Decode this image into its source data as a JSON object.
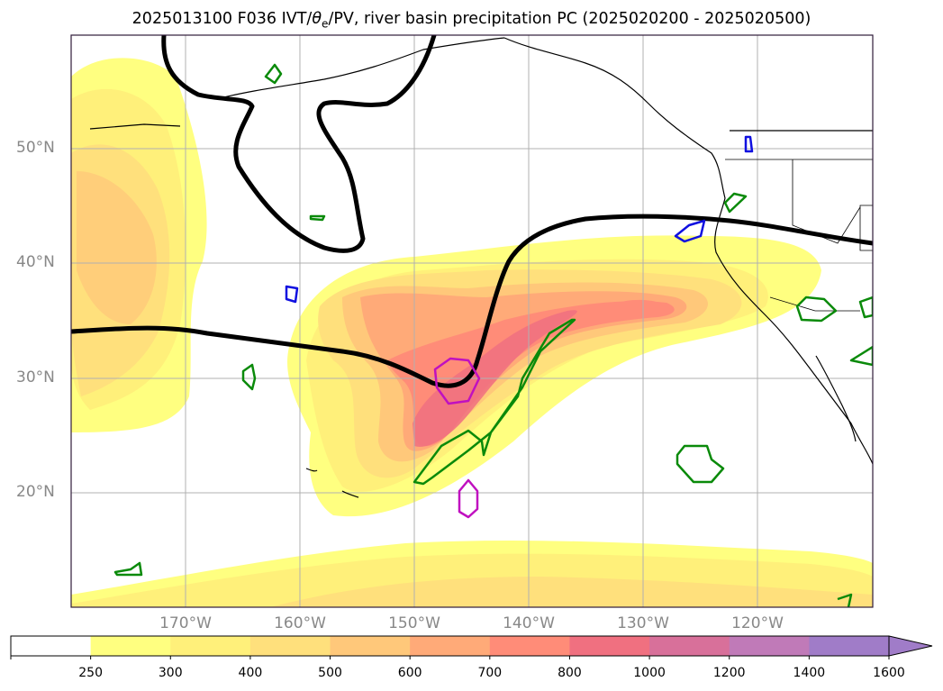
{
  "title": {
    "prefix": "2025013100 F036 IVT/",
    "theta": "θ",
    "theta_sub": "e",
    "suffix": "/PV, river basin precipitation PC (2025020200 - 2025020500)"
  },
  "map": {
    "projection": "plate-carree",
    "lon_range_deg": [
      -180,
      -110
    ],
    "lat_range_deg": [
      10,
      60
    ],
    "lat_ticks": [
      "50°N",
      "40°N",
      "30°N",
      "20°N"
    ],
    "lon_ticks": [
      "170°W",
      "160°W",
      "150°W",
      "140°W",
      "130°W",
      "120°W"
    ],
    "gridlines": true,
    "frame_color": "#2f1b3a"
  },
  "layers": {
    "ivt_fill": "IVT shaded contours (yellow to red)",
    "pv_contour": "thick black contour",
    "precip_pc": [
      "green",
      "blue",
      "magenta"
    ],
    "coastlines": "black"
  },
  "colorbar": {
    "labels": [
      "250",
      "300",
      "400",
      "500",
      "600",
      "700",
      "800",
      "1000",
      "1200",
      "1400",
      "1600"
    ],
    "colors": [
      "#ffffff",
      "#ffff80",
      "#fff07a",
      "#ffe07c",
      "#ffc87a",
      "#ffaa78",
      "#ff8c78",
      "#f07080",
      "#d8709a",
      "#c07ab8",
      "#a07cc8"
    ],
    "extend": "max"
  }
}
